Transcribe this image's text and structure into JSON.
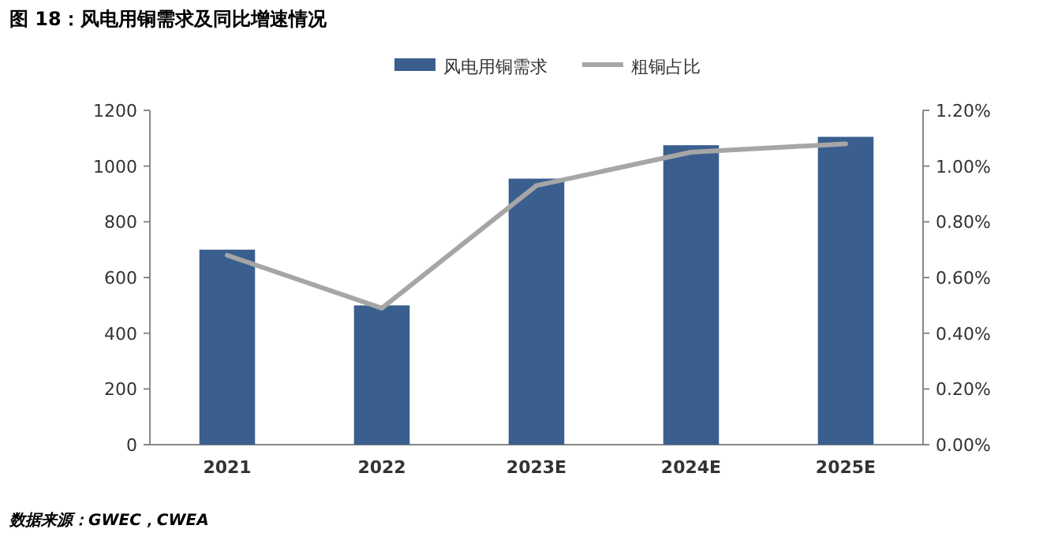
{
  "chart_data": {
    "type": "bar",
    "title": "图 18：风电用铜需求及同比增速情况",
    "annotations": [
      "数据来源：GWEC，CWEA"
    ],
    "categories": [
      "2021",
      "2022",
      "2023E",
      "2024E",
      "2025E"
    ],
    "series": [
      {
        "name": "风电用铜需求",
        "color": "#3a5f8f",
        "values": [
          700,
          500,
          955,
          1075,
          1105
        ]
      },
      {
        "name": "粗铜占比",
        "type": "line",
        "axis": "y2",
        "color": "#a6a6a6",
        "values": [
          0.68,
          0.49,
          0.93,
          1.05,
          1.08
        ]
      }
    ],
    "ylim": [
      0,
      1200
    ],
    "yticks": [
      0,
      200,
      400,
      600,
      800,
      1000,
      1200
    ],
    "y2lim": [
      0,
      1.2
    ],
    "y2ticks": [
      {
        "value": 0,
        "label": "0.00%"
      },
      {
        "value": 0.2,
        "label": "0.20%"
      },
      {
        "value": 0.4,
        "label": "0.40%"
      },
      {
        "value": 0.6,
        "label": "0.60%"
      },
      {
        "value": 0.8,
        "label": "0.80%"
      },
      {
        "value": 1.0,
        "label": "1.00%"
      },
      {
        "value": 1.2,
        "label": "1.20%"
      }
    ],
    "legend": "top",
    "marker": "none"
  }
}
